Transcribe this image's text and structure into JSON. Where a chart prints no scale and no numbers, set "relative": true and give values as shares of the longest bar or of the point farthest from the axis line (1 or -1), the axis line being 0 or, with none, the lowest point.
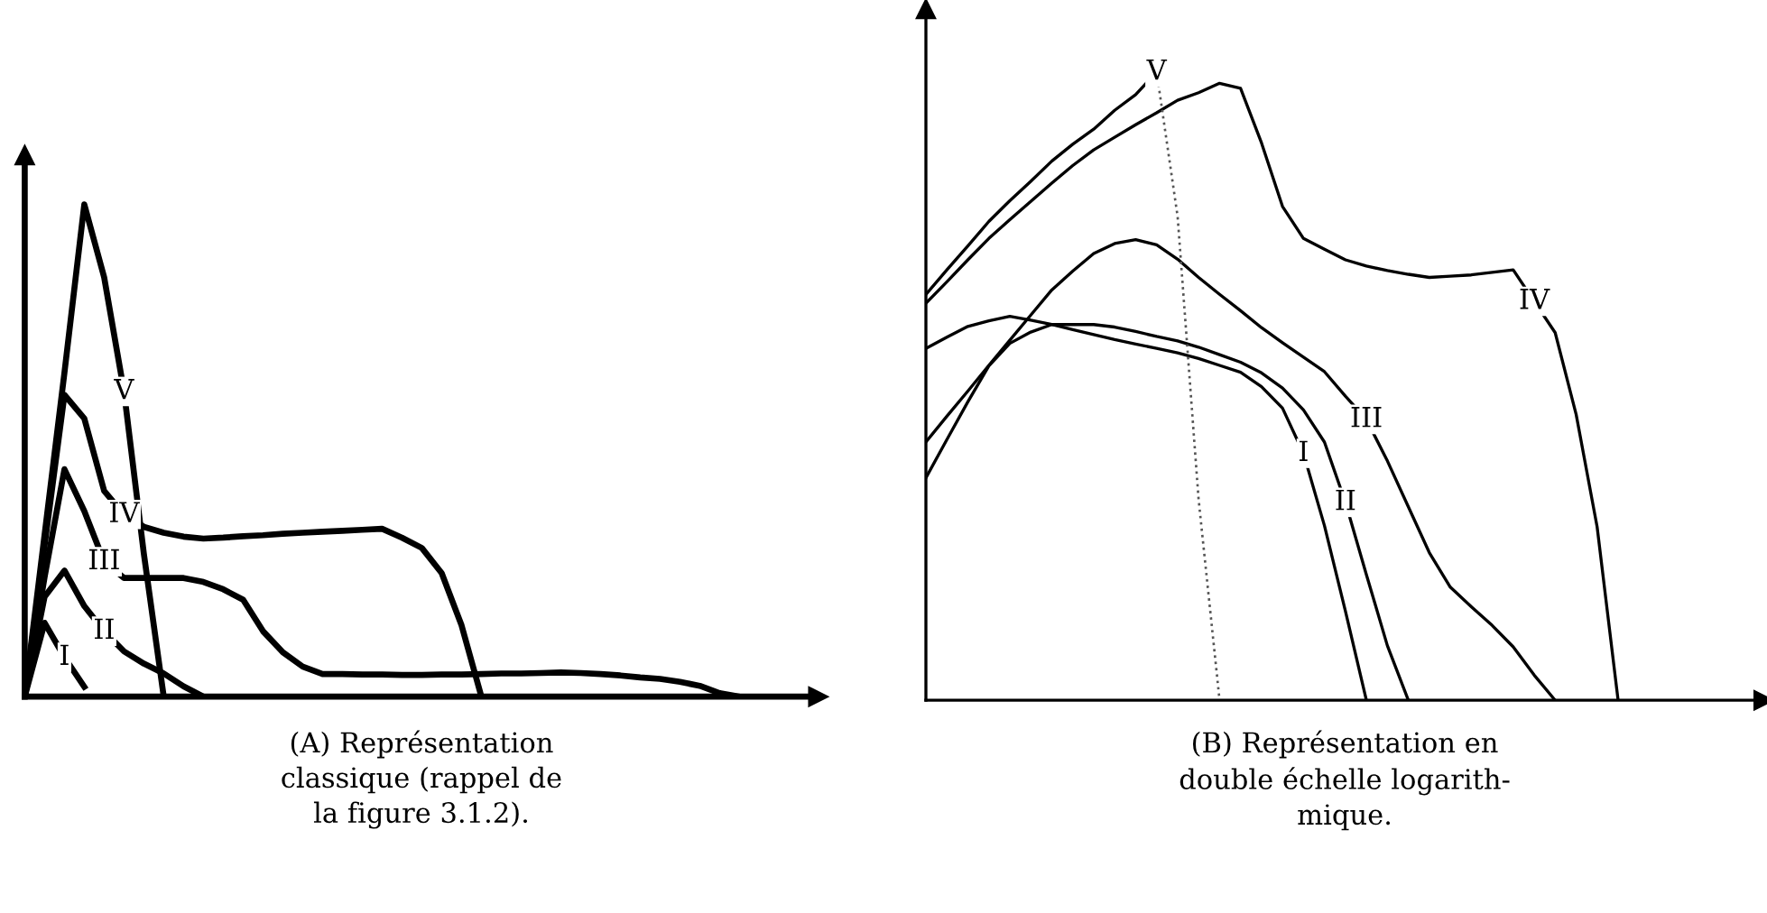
{
  "chart_data": [
    {
      "type": "line",
      "relative": true,
      "categories": [
        null,
        null,
        null,
        null,
        null,
        null,
        null,
        null,
        null,
        null,
        null,
        null,
        null,
        null,
        null,
        null,
        null,
        null,
        null,
        null,
        null,
        null,
        null,
        null,
        null,
        null,
        null,
        null,
        null,
        null,
        null,
        null,
        null,
        null,
        null,
        null,
        null
      ],
      "series": [
        {
          "name": "I",
          "color": "#000000",
          "values": [
            0,
            0.15,
            0.08,
            0.02,
            null,
            null,
            null,
            null,
            null,
            null,
            null,
            null,
            null,
            null,
            null,
            null,
            null,
            null,
            null,
            null,
            null,
            null,
            null,
            null,
            null,
            null,
            null,
            null,
            null,
            null,
            null,
            null,
            null,
            null,
            null,
            null,
            null
          ]
        },
        {
          "name": "II",
          "color": "#000000",
          "values": [
            0,
            0.203,
            0.256,
            0.184,
            0.133,
            0.092,
            0.067,
            0.047,
            0.021,
            0,
            null,
            null,
            null,
            null,
            null,
            null,
            null,
            null,
            null,
            null,
            null,
            null,
            null,
            null,
            null,
            null,
            null,
            null,
            null,
            null,
            null,
            null,
            null,
            null,
            null,
            null,
            null
          ]
        },
        {
          "name": "III",
          "color": "#000000",
          "values": [
            0,
            0.243,
            0.462,
            0.377,
            0.274,
            0.241,
            0.241,
            0.241,
            0.241,
            0.233,
            0.218,
            0.197,
            0.133,
            0.09,
            0.061,
            0.046,
            0.046,
            0.045,
            0.045,
            0.044,
            0.044,
            0.045,
            0.045,
            0.046,
            0.047,
            0.047,
            0.048,
            0.049,
            0.048,
            0.046,
            0.043,
            0.039,
            0.036,
            0.03,
            0.022,
            0.007,
            0
          ]
        },
        {
          "name": "IV",
          "color": "#000000",
          "values": [
            0,
            0.307,
            0.613,
            0.565,
            0.418,
            0.37,
            0.345,
            0.333,
            0.325,
            0.321,
            0.323,
            0.326,
            0.328,
            0.331,
            0.333,
            0.335,
            0.337,
            0.339,
            0.341,
            0.323,
            0.302,
            0.251,
            0.145,
            0,
            null,
            null,
            null,
            null,
            null,
            null,
            null,
            null,
            null,
            null,
            null,
            null,
            null
          ]
        },
        {
          "name": "V",
          "color": "#000000",
          "values": [
            0,
            0.329,
            0.658,
            1,
            0.852,
            0.62,
            0.29,
            0,
            null,
            null,
            null,
            null,
            null,
            null,
            null,
            null,
            null,
            null,
            null,
            null,
            null,
            null,
            null,
            null,
            null,
            null,
            null,
            null,
            null,
            null,
            null,
            null,
            null,
            null,
            null,
            null,
            null
          ]
        }
      ],
      "annotations": [
        "(A) Représentation\nclassique (rappel de\nla figure 3.1.2)."
      ]
    },
    {
      "type": "line",
      "relative": true,
      "categories": [
        null,
        null,
        null,
        null,
        null,
        null,
        null,
        null,
        null,
        null,
        null,
        null,
        null,
        null,
        null,
        null,
        null,
        null,
        null,
        null,
        null,
        null,
        null,
        null,
        null,
        null,
        null,
        null,
        null,
        null,
        null,
        null,
        null,
        null
      ],
      "series": [
        {
          "name": "I",
          "color": "#000000",
          "values": [
            0.56,
            0.578,
            0.595,
            0.604,
            0.611,
            0.605,
            0.598,
            0.59,
            0.582,
            0.574,
            0.567,
            0.56,
            0.553,
            0.544,
            0.533,
            0.522,
            0.499,
            0.465,
            0.393,
            0.278,
            0.142,
            0,
            null,
            null,
            null,
            null,
            null,
            null,
            null,
            null,
            null,
            null,
            null,
            null
          ]
        },
        {
          "name": "II",
          "color": "#000000",
          "values": [
            0.354,
            0.415,
            0.475,
            0.532,
            0.568,
            0.586,
            0.598,
            0.598,
            0.598,
            0.594,
            0.587,
            0.579,
            0.572,
            0.562,
            0.55,
            0.538,
            0.521,
            0.497,
            0.462,
            0.411,
            0.315,
            0.2,
            0.087,
            0,
            null,
            null,
            null,
            null,
            null,
            null,
            null,
            null,
            null,
            null
          ]
        },
        {
          "name": "III",
          "color": "#000000",
          "values": [
            0.411,
            0.452,
            0.492,
            0.533,
            0.573,
            0.613,
            0.653,
            0.683,
            0.711,
            0.727,
            0.733,
            0.725,
            0.702,
            0.673,
            0.646,
            0.62,
            0.593,
            0.569,
            0.546,
            0.523,
            0.484,
            0.447,
            0.381,
            0.308,
            0.235,
            0.18,
            0.149,
            0.119,
            0.085,
            0.04,
            0,
            null,
            null,
            null
          ]
        },
        {
          "name": "IV",
          "color": "#000000",
          "values": [
            0.632,
            0.666,
            0.701,
            0.735,
            0.765,
            0.794,
            0.823,
            0.851,
            0.876,
            0.896,
            0.916,
            0.935,
            0.955,
            0.967,
            0.982,
            0.974,
            0.887,
            0.786,
            0.735,
            0.718,
            0.701,
            0.691,
            0.684,
            0.678,
            0.673,
            0.675,
            0.677,
            0.681,
            0.685,
            0.635,
            0.585,
            0.455,
            0.276,
            0
          ]
        },
        {
          "name": "V",
          "color": "#000000",
          "values": [
            0.646,
            0.685,
            0.723,
            0.762,
            0.795,
            0.826,
            0.858,
            0.885,
            0.909,
            0.939,
            0.964,
            1,
            null,
            null,
            null,
            null,
            null,
            null,
            null,
            null,
            null,
            null,
            null,
            null,
            null,
            null,
            null,
            null,
            null,
            null,
            null,
            null,
            null,
            null
          ]
        },
        {
          "color": "#555555",
          "line_style": "dotted",
          "values": [
            null,
            null,
            null,
            null,
            null,
            null,
            null,
            null,
            null,
            null,
            null,
            1,
            0.77,
            0.32,
            0,
            null,
            null,
            null,
            null,
            null,
            null,
            null,
            null,
            null,
            null,
            null,
            null,
            null,
            null,
            null,
            null,
            null,
            null,
            null
          ]
        }
      ],
      "annotations": [
        "(B) Représentation en\ndouble échelle logarith-\nmique."
      ]
    }
  ]
}
